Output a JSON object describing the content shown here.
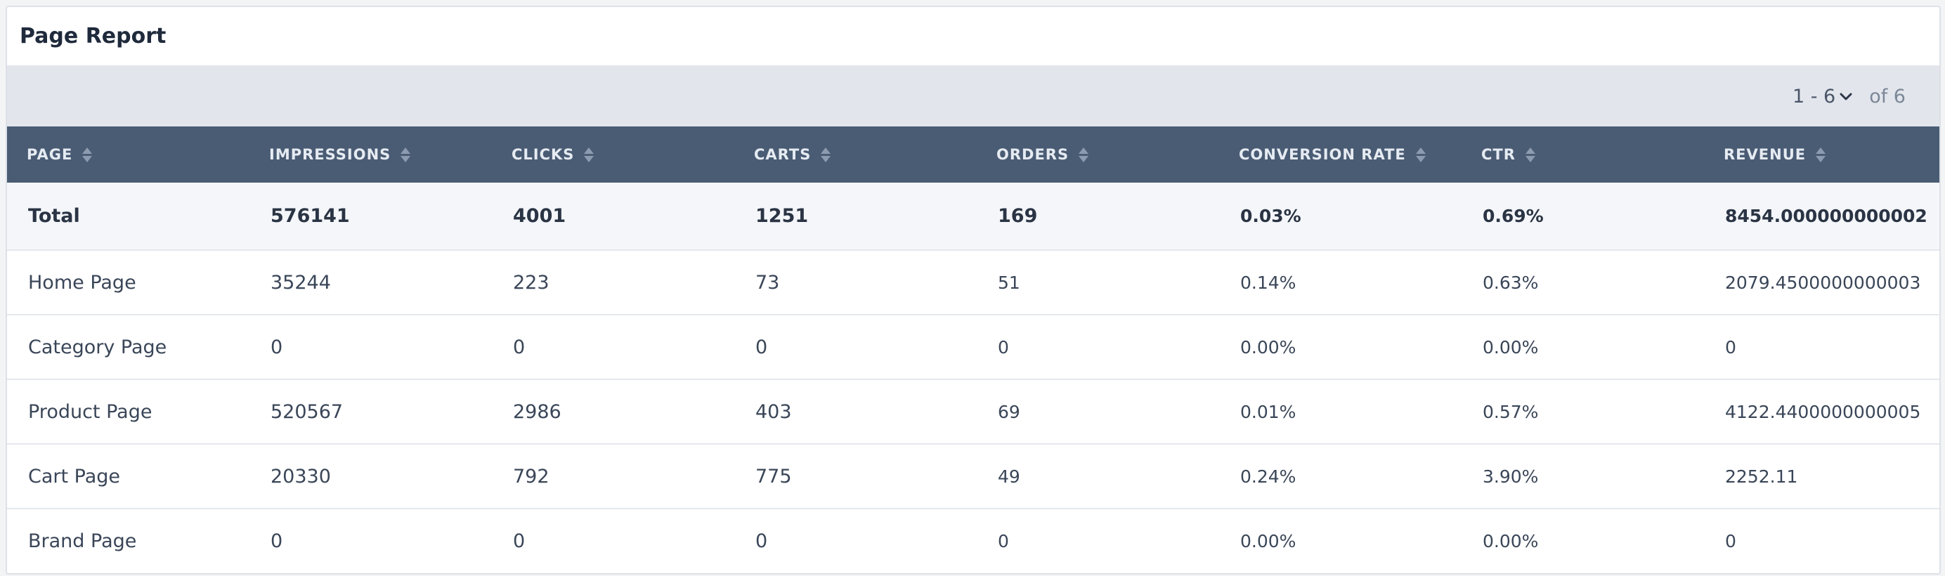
{
  "header": {
    "title": "Page Report"
  },
  "pagination": {
    "range": "1 - 6",
    "of_text": "of 6"
  },
  "columns": [
    {
      "label": "PAGE"
    },
    {
      "label": "IMPRESSIONS"
    },
    {
      "label": "CLICKS"
    },
    {
      "label": "CARTS"
    },
    {
      "label": "ORDERS"
    },
    {
      "label": "CONVERSION RATE"
    },
    {
      "label": "CTR"
    },
    {
      "label": "REVENUE"
    }
  ],
  "rows": [
    [
      "Total",
      "576141",
      "4001",
      "1251",
      "169",
      "0.03%",
      "0.69%",
      "8454.000000000002"
    ],
    [
      "Home Page",
      "35244",
      "223",
      "73",
      "51",
      "0.14%",
      "0.63%",
      "2079.4500000000003"
    ],
    [
      "Category Page",
      "0",
      "0",
      "0",
      "0",
      "0.00%",
      "0.00%",
      "0"
    ],
    [
      "Product Page",
      "520567",
      "2986",
      "403",
      "69",
      "0.01%",
      "0.57%",
      "4122.4400000000005"
    ],
    [
      "Cart Page",
      "20330",
      "792",
      "775",
      "49",
      "0.24%",
      "3.90%",
      "2252.11"
    ],
    [
      "Brand Page",
      "0",
      "0",
      "0",
      "0",
      "0.00%",
      "0.00%",
      "0"
    ]
  ],
  "icons": {
    "sort": "sort-icon",
    "dropdown": "chevron-down-icon"
  },
  "colors": {
    "header_bg": "#4a5c74",
    "toolbar_bg": "#e2e6ec",
    "total_row_bg": "#f4f6f9"
  }
}
